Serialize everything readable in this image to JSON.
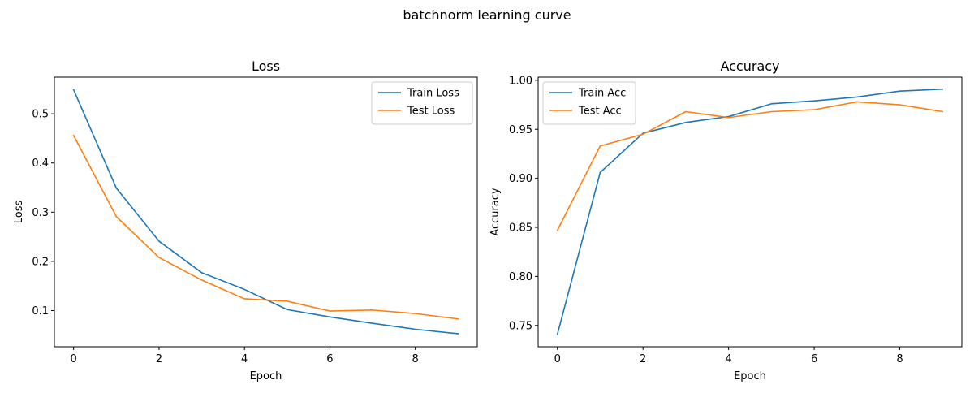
{
  "suptitle": "batchnorm learning curve",
  "chart_data": [
    {
      "type": "line",
      "title": "Loss",
      "xlabel": "Epoch",
      "ylabel": "Loss",
      "x": [
        0,
        1,
        2,
        3,
        4,
        5,
        6,
        7,
        8,
        9
      ],
      "xlim": [
        -0.45,
        9.45
      ],
      "ylim": [
        0.0265,
        0.5745
      ],
      "xticks": [
        0,
        2,
        4,
        6,
        8
      ],
      "yticks": [
        0.1,
        0.2,
        0.3,
        0.4,
        0.5
      ],
      "xtick_labels": [
        "0",
        "2",
        "4",
        "6",
        "8"
      ],
      "ytick_labels": [
        "0.1",
        "0.2",
        "0.3",
        "0.4",
        "0.5"
      ],
      "legend_position": "top-right",
      "grid": false,
      "series": [
        {
          "name": "Train Loss",
          "color": "#1f77b4",
          "values": [
            0.549,
            0.349,
            0.241,
            0.177,
            0.143,
            0.102,
            0.087,
            0.074,
            0.062,
            0.053
          ]
        },
        {
          "name": "Test Loss",
          "color": "#ff7f0e",
          "values": [
            0.456,
            0.291,
            0.208,
            0.162,
            0.124,
            0.119,
            0.099,
            0.101,
            0.094,
            0.083
          ]
        }
      ]
    },
    {
      "type": "line",
      "title": "Accuracy",
      "xlabel": "Epoch",
      "ylabel": "Accuracy",
      "x": [
        0,
        1,
        2,
        3,
        4,
        5,
        6,
        7,
        8,
        9
      ],
      "xlim": [
        -0.45,
        9.45
      ],
      "ylim": [
        0.7283,
        1.0032
      ],
      "xticks": [
        0,
        2,
        4,
        6,
        8
      ],
      "yticks": [
        0.75,
        0.8,
        0.85,
        0.9,
        0.95,
        1.0
      ],
      "xtick_labels": [
        "0",
        "2",
        "4",
        "6",
        "8"
      ],
      "ytick_labels": [
        "0.75",
        "0.80",
        "0.85",
        "0.90",
        "0.95",
        "1.00"
      ],
      "legend_position": "top-left",
      "grid": false,
      "series": [
        {
          "name": "Train Acc",
          "color": "#1f77b4",
          "values": [
            0.741,
            0.906,
            0.946,
            0.957,
            0.963,
            0.976,
            0.979,
            0.983,
            0.989,
            0.991
          ]
        },
        {
          "name": "Test Acc",
          "color": "#ff7f0e",
          "values": [
            0.847,
            0.933,
            0.945,
            0.968,
            0.962,
            0.968,
            0.97,
            0.978,
            0.975,
            0.968
          ]
        }
      ]
    }
  ]
}
